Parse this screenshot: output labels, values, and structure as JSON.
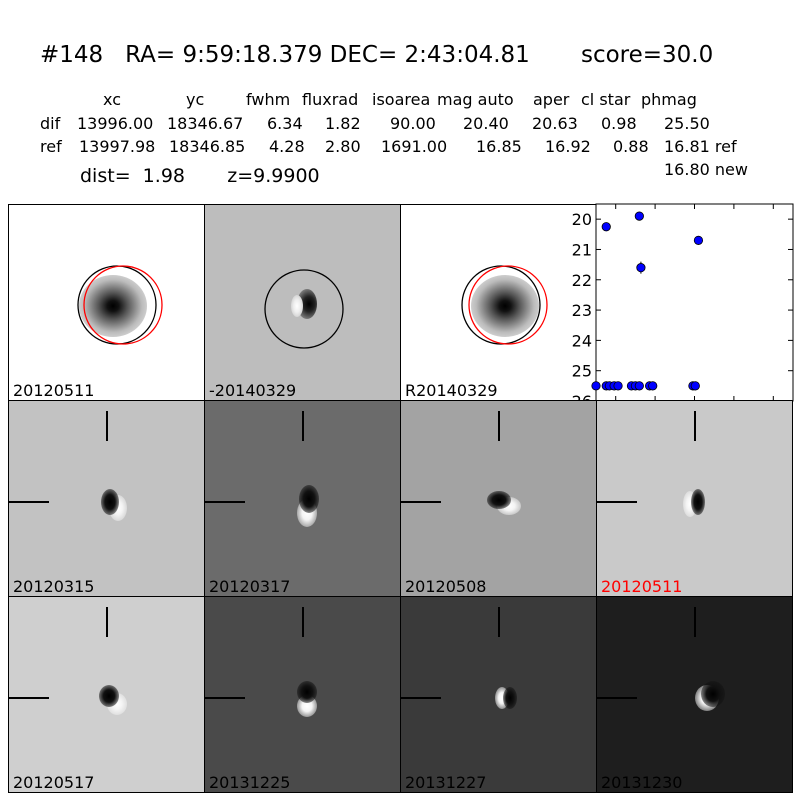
{
  "header": {
    "title_line": "#148   RA= 9:59:18.379 DEC= 2:43:04.81       score=30.0",
    "columns": [
      "xc",
      "yc",
      "fwhm",
      "fluxrad",
      "isoarea",
      "mag auto",
      "aper",
      "cl star",
      "phmag"
    ],
    "dif_row": [
      "dif",
      "13996.00",
      "18346.67",
      "6.34",
      "1.82",
      "90.00",
      "20.40",
      "20.63",
      "0.98",
      "25.50"
    ],
    "ref_row": [
      "ref",
      "13997.98",
      "18346.85",
      "4.28",
      "2.80",
      "1691.00",
      "16.85",
      "16.92",
      "0.88",
      "16.81 ref"
    ],
    "new_mag": "16.80 new",
    "dist_line": "dist=  1.98       z=9.9900"
  },
  "top_panels": [
    {
      "label": "20120511",
      "bg": "#ffffff"
    },
    {
      "label": "-20140329",
      "bg": "#bdbdbd"
    },
    {
      "label": "R20140329",
      "bg": "#ffffff"
    }
  ],
  "cutouts": [
    {
      "label": "20120315",
      "bg": "#c2c2c2",
      "label_color": "#000000"
    },
    {
      "label": "20120317",
      "bg": "#6b6b6b",
      "label_color": "#000000"
    },
    {
      "label": "20120508",
      "bg": "#a3a3a3",
      "label_color": "#000000"
    },
    {
      "label": "20120511",
      "bg": "#c9c9c9",
      "label_color": "#ff0000"
    },
    {
      "label": "20120517",
      "bg": "#cfcfcf",
      "label_color": "#000000"
    },
    {
      "label": "20131225",
      "bg": "#4a4a4a",
      "label_color": "#000000"
    },
    {
      "label": "20131227",
      "bg": "#3a3a3a",
      "label_color": "#000000"
    },
    {
      "label": "20131230",
      "bg": "#1e1e1e",
      "label_color": "#000000"
    }
  ],
  "chart_data": {
    "type": "scatter",
    "xlim": [
      -125,
      125
    ],
    "ylim": [
      26,
      19.5
    ],
    "y_inverted": true,
    "xticks": [
      "-100",
      "-50",
      "0",
      "50",
      "100"
    ],
    "xtick_values": [
      -100,
      -50,
      0,
      50,
      100
    ],
    "yticks": [
      "20",
      "21",
      "22",
      "23",
      "24",
      "25",
      "26"
    ],
    "ytick_values": [
      20,
      21,
      22,
      23,
      24,
      25,
      26
    ],
    "marker_color": "#0000ff",
    "points": [
      {
        "x": -112,
        "y": 20.25
      },
      {
        "x": -70,
        "y": 19.9
      },
      {
        "x": -68,
        "y": 21.6
      },
      {
        "x": 5,
        "y": 20.7
      },
      {
        "x": -125,
        "y": 25.5
      },
      {
        "x": -112,
        "y": 25.5
      },
      {
        "x": -108,
        "y": 25.5
      },
      {
        "x": -102,
        "y": 25.5
      },
      {
        "x": -97,
        "y": 25.5
      },
      {
        "x": -80,
        "y": 25.5
      },
      {
        "x": -75,
        "y": 25.5
      },
      {
        "x": -70,
        "y": 25.5
      },
      {
        "x": -57,
        "y": 25.5
      },
      {
        "x": -53,
        "y": 25.5
      },
      {
        "x": -2,
        "y": 25.5
      },
      {
        "x": 1,
        "y": 25.5
      }
    ]
  }
}
